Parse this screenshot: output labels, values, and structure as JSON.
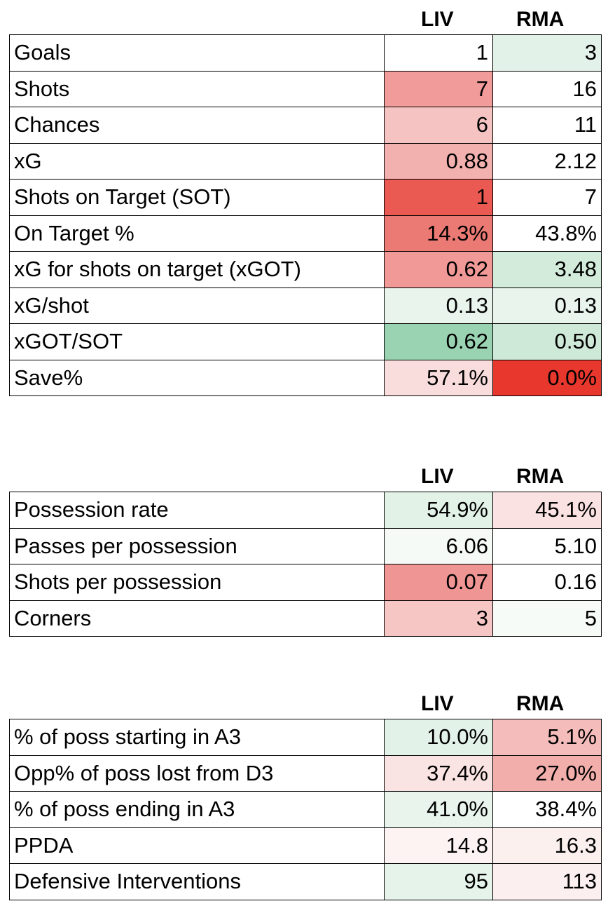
{
  "sections": [
    {
      "columns": [
        "LIV",
        "RMA"
      ],
      "rows": [
        {
          "label": "Goals",
          "liv": "1",
          "rma": "3",
          "liv_bg": "#ffffff",
          "rma_bg": "#e3f2e8"
        },
        {
          "label": "Shots",
          "liv": "7",
          "rma": "16",
          "liv_bg": "#f19c9a",
          "rma_bg": "#ffffff"
        },
        {
          "label": "Chances",
          "liv": "6",
          "rma": "11",
          "liv_bg": "#f5c4c2",
          "rma_bg": "#ffffff"
        },
        {
          "label": "xG",
          "liv": "0.88",
          "rma": "2.12",
          "liv_bg": "#f2b1ae",
          "rma_bg": "#ffffff"
        },
        {
          "label": "Shots on Target (SOT)",
          "liv": "1",
          "rma": "7",
          "liv_bg": "#ea5a52",
          "rma_bg": "#ffffff"
        },
        {
          "label": "On Target %",
          "liv": "14.3%",
          "rma": "43.8%",
          "liv_bg": "#ec7a74",
          "rma_bg": "#ffffff"
        },
        {
          "label": "xG for shots on target (xGOT)",
          "liv": "0.62",
          "rma": "3.48",
          "liv_bg": "#f09996",
          "rma_bg": "#d3ebdb"
        },
        {
          "label": "xG/shot",
          "liv": "0.13",
          "rma": "0.13",
          "liv_bg": "#e8f4ec",
          "rma_bg": "#e8f4ec"
        },
        {
          "label": "xGOT/SOT",
          "liv": "0.62",
          "rma": "0.50",
          "liv_bg": "#9ad3b2",
          "rma_bg": "#cfe9d8"
        },
        {
          "label": "Save%",
          "liv": "57.1%",
          "rma": "0.0%",
          "liv_bg": "#f9dcdc",
          "rma_bg": "#e8372c"
        }
      ]
    },
    {
      "columns": [
        "LIV",
        "RMA"
      ],
      "rows": [
        {
          "label": "Possession rate",
          "liv": "54.9%",
          "rma": "45.1%",
          "liv_bg": "#e2f2e7",
          "rma_bg": "#f9e2e1"
        },
        {
          "label": "Passes per possession",
          "liv": "6.06",
          "rma": "5.10",
          "liv_bg": "#f5faf6",
          "rma_bg": "#ffffff"
        },
        {
          "label": "Shots per possession",
          "liv": "0.07",
          "rma": "0.16",
          "liv_bg": "#ef9593",
          "rma_bg": "#ffffff"
        },
        {
          "label": "Corners",
          "liv": "3",
          "rma": "5",
          "liv_bg": "#f5c6c4",
          "rma_bg": "#f6fbf7"
        }
      ]
    },
    {
      "columns": [
        "LIV",
        "RMA"
      ],
      "rows": [
        {
          "label": "% of poss starting in A3",
          "liv": "10.0%",
          "rma": "5.1%",
          "liv_bg": "#e3f2e8",
          "rma_bg": "#f4bdbb"
        },
        {
          "label": "Opp% of poss lost from D3",
          "liv": "37.4%",
          "rma": "27.0%",
          "liv_bg": "#fae4e3",
          "rma_bg": "#f2aeab"
        },
        {
          "label": "% of poss ending in A3",
          "liv": "41.0%",
          "rma": "38.4%",
          "liv_bg": "#e8f4ec",
          "rma_bg": "#ffffff"
        },
        {
          "label": "PPDA",
          "liv": "14.8",
          "rma": "16.3",
          "liv_bg": "#fdf3f2",
          "rma_bg": "#fcf0ef"
        },
        {
          "label": "Defensive Interventions",
          "liv": "95",
          "rma": "113",
          "liv_bg": "#e6f3ea",
          "rma_bg": "#fcefef"
        }
      ]
    }
  ]
}
